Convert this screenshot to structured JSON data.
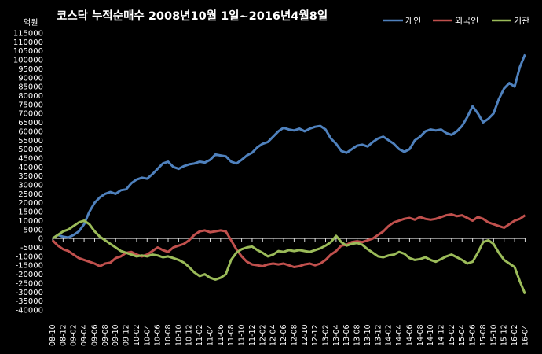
{
  "chart_data": {
    "type": "line",
    "title": "코스닥  누적순매수 2008년10월 1일~2016년4월8일",
    "unit_label": "억원",
    "ylim": [
      -40000,
      115000
    ],
    "y_ticks": [
      115000,
      110000,
      105000,
      100000,
      95000,
      90000,
      85000,
      80000,
      75000,
      70000,
      65000,
      60000,
      55000,
      50000,
      45000,
      40000,
      35000,
      30000,
      25000,
      20000,
      15000,
      10000,
      5000,
      0,
      -5000,
      -10000,
      -15000,
      -20000,
      -25000,
      -30000,
      -35000,
      -40000
    ],
    "x_start": "2008-10-01",
    "x_end": "2016-04-08",
    "x_ticks": [
      "08-10",
      "08-12",
      "09-02",
      "09-04",
      "09-06",
      "09-08",
      "09-10",
      "09-12",
      "10-02",
      "10-04",
      "10-06",
      "10-08",
      "10-10",
      "10-12",
      "11-02",
      "11-04",
      "11-06",
      "11-08",
      "11-10",
      "11-12",
      "12-02",
      "12-04",
      "12-06",
      "12-08",
      "12-10",
      "12-12",
      "13-02",
      "13-04",
      "13-06",
      "13-08",
      "13-10",
      "13-12",
      "14-02",
      "14-04",
      "14-06",
      "14-08",
      "14-10",
      "14-12",
      "15-02",
      "15-04",
      "15-06",
      "15-08",
      "15-10",
      "15-12",
      "16-02",
      "16-04"
    ],
    "legend_position": "top-right",
    "grid": false,
    "series": [
      {
        "name": "개인",
        "color": "#4f81bd",
        "points": [
          [
            "2008-10",
            0
          ],
          [
            "2008-11",
            2000
          ],
          [
            "2008-12",
            1000
          ],
          [
            "2009-01",
            500
          ],
          [
            "2009-02",
            2000
          ],
          [
            "2009-03",
            4000
          ],
          [
            "2009-04",
            8000
          ],
          [
            "2009-05",
            15000
          ],
          [
            "2009-06",
            20000
          ],
          [
            "2009-07",
            23000
          ],
          [
            "2009-08",
            25000
          ],
          [
            "2009-09",
            26000
          ],
          [
            "2009-10",
            25000
          ],
          [
            "2009-11",
            27000
          ],
          [
            "2009-12",
            27500
          ],
          [
            "2010-01",
            31000
          ],
          [
            "2010-02",
            33000
          ],
          [
            "2010-03",
            34000
          ],
          [
            "2010-04",
            33500
          ],
          [
            "2010-05",
            36000
          ],
          [
            "2010-06",
            39000
          ],
          [
            "2010-07",
            42000
          ],
          [
            "2010-08",
            43000
          ],
          [
            "2010-09",
            40000
          ],
          [
            "2010-10",
            39000
          ],
          [
            "2010-11",
            40500
          ],
          [
            "2010-12",
            41500
          ],
          [
            "2011-01",
            42000
          ],
          [
            "2011-02",
            43000
          ],
          [
            "2011-03",
            42500
          ],
          [
            "2011-04",
            44000
          ],
          [
            "2011-05",
            47000
          ],
          [
            "2011-06",
            46500
          ],
          [
            "2011-07",
            46000
          ],
          [
            "2011-08",
            43000
          ],
          [
            "2011-09",
            42000
          ],
          [
            "2011-10",
            44000
          ],
          [
            "2011-11",
            46500
          ],
          [
            "2011-12",
            48000
          ],
          [
            "2012-01",
            51000
          ],
          [
            "2012-02",
            53000
          ],
          [
            "2012-03",
            54000
          ],
          [
            "2012-04",
            57000
          ],
          [
            "2012-05",
            60000
          ],
          [
            "2012-06",
            62000
          ],
          [
            "2012-07",
            61000
          ],
          [
            "2012-08",
            60500
          ],
          [
            "2012-09",
            61500
          ],
          [
            "2012-10",
            60000
          ],
          [
            "2012-11",
            61500
          ],
          [
            "2012-12",
            62500
          ],
          [
            "2013-01",
            63000
          ],
          [
            "2013-02",
            61000
          ],
          [
            "2013-03",
            56000
          ],
          [
            "2013-04",
            53000
          ],
          [
            "2013-05",
            49000
          ],
          [
            "2013-06",
            48000
          ],
          [
            "2013-07",
            50000
          ],
          [
            "2013-08",
            52000
          ],
          [
            "2013-09",
            52500
          ],
          [
            "2013-10",
            51500
          ],
          [
            "2013-11",
            54000
          ],
          [
            "2013-12",
            56000
          ],
          [
            "2014-01",
            57000
          ],
          [
            "2014-02",
            55000
          ],
          [
            "2014-03",
            53000
          ],
          [
            "2014-04",
            50000
          ],
          [
            "2014-05",
            48500
          ],
          [
            "2014-06",
            50000
          ],
          [
            "2014-07",
            55000
          ],
          [
            "2014-08",
            57000
          ],
          [
            "2014-09",
            60000
          ],
          [
            "2014-10",
            61000
          ],
          [
            "2014-11",
            60500
          ],
          [
            "2014-12",
            61000
          ],
          [
            "2015-01",
            59000
          ],
          [
            "2015-02",
            58000
          ],
          [
            "2015-03",
            60000
          ],
          [
            "2015-04",
            63000
          ],
          [
            "2015-05",
            68000
          ],
          [
            "2015-06",
            74000
          ],
          [
            "2015-07",
            70000
          ],
          [
            "2015-08",
            65000
          ],
          [
            "2015-09",
            67000
          ],
          [
            "2015-10",
            70000
          ],
          [
            "2015-11",
            78000
          ],
          [
            "2015-12",
            84000
          ],
          [
            "2016-01",
            87000
          ],
          [
            "2016-02",
            85000
          ],
          [
            "2016-03",
            96000
          ],
          [
            "2016-04",
            103000
          ]
        ]
      },
      {
        "name": "외국인",
        "color": "#c0504d",
        "points": [
          [
            "2008-10",
            -1000
          ],
          [
            "2008-11",
            -4000
          ],
          [
            "2008-12",
            -6000
          ],
          [
            "2009-01",
            -7000
          ],
          [
            "2009-02",
            -9000
          ],
          [
            "2009-03",
            -11000
          ],
          [
            "2009-04",
            -12000
          ],
          [
            "2009-05",
            -13000
          ],
          [
            "2009-06",
            -14000
          ],
          [
            "2009-07",
            -15500
          ],
          [
            "2009-08",
            -14000
          ],
          [
            "2009-09",
            -13500
          ],
          [
            "2009-10",
            -11000
          ],
          [
            "2009-11",
            -10000
          ],
          [
            "2009-12",
            -8000
          ],
          [
            "2010-01",
            -7500
          ],
          [
            "2010-02",
            -9000
          ],
          [
            "2010-03",
            -10000
          ],
          [
            "2010-04",
            -9000
          ],
          [
            "2010-05",
            -7000
          ],
          [
            "2010-06",
            -5000
          ],
          [
            "2010-07",
            -6500
          ],
          [
            "2010-08",
            -7500
          ],
          [
            "2010-09",
            -5000
          ],
          [
            "2010-10",
            -4000
          ],
          [
            "2010-11",
            -3000
          ],
          [
            "2010-12",
            -1000
          ],
          [
            "2011-01",
            2000
          ],
          [
            "2011-02",
            4000
          ],
          [
            "2011-03",
            4500
          ],
          [
            "2011-04",
            3500
          ],
          [
            "2011-05",
            4000
          ],
          [
            "2011-06",
            4500
          ],
          [
            "2011-07",
            4000
          ],
          [
            "2011-08",
            -1000
          ],
          [
            "2011-09",
            -6000
          ],
          [
            "2011-10",
            -10000
          ],
          [
            "2011-11",
            -13000
          ],
          [
            "2011-12",
            -14500
          ],
          [
            "2012-01",
            -15000
          ],
          [
            "2012-02",
            -15500
          ],
          [
            "2012-03",
            -14500
          ],
          [
            "2012-04",
            -14000
          ],
          [
            "2012-05",
            -14500
          ],
          [
            "2012-06",
            -14000
          ],
          [
            "2012-07",
            -15000
          ],
          [
            "2012-08",
            -16000
          ],
          [
            "2012-09",
            -15500
          ],
          [
            "2012-10",
            -14500
          ],
          [
            "2012-11",
            -14000
          ],
          [
            "2012-12",
            -15000
          ],
          [
            "2013-01",
            -14000
          ],
          [
            "2013-02",
            -12000
          ],
          [
            "2013-03",
            -9000
          ],
          [
            "2013-04",
            -7000
          ],
          [
            "2013-05",
            -4000
          ],
          [
            "2013-06",
            -3500
          ],
          [
            "2013-07",
            -2000
          ],
          [
            "2013-08",
            -1500
          ],
          [
            "2013-09",
            -2000
          ],
          [
            "2013-10",
            -1000
          ],
          [
            "2013-11",
            0
          ],
          [
            "2013-12",
            2000
          ],
          [
            "2014-01",
            4000
          ],
          [
            "2014-02",
            7000
          ],
          [
            "2014-03",
            9000
          ],
          [
            "2014-04",
            10000
          ],
          [
            "2014-05",
            11000
          ],
          [
            "2014-06",
            11500
          ],
          [
            "2014-07",
            10500
          ],
          [
            "2014-08",
            12000
          ],
          [
            "2014-09",
            11000
          ],
          [
            "2014-10",
            10500
          ],
          [
            "2014-11",
            11000
          ],
          [
            "2014-12",
            12000
          ],
          [
            "2015-01",
            13000
          ],
          [
            "2015-02",
            13500
          ],
          [
            "2015-03",
            12500
          ],
          [
            "2015-04",
            13000
          ],
          [
            "2015-05",
            11500
          ],
          [
            "2015-06",
            10000
          ],
          [
            "2015-07",
            12000
          ],
          [
            "2015-08",
            11000
          ],
          [
            "2015-09",
            9000
          ],
          [
            "2015-10",
            8000
          ],
          [
            "2015-11",
            7000
          ],
          [
            "2015-12",
            6000
          ],
          [
            "2016-01",
            8000
          ],
          [
            "2016-02",
            10000
          ],
          [
            "2016-03",
            11000
          ],
          [
            "2016-04",
            13000
          ]
        ]
      },
      {
        "name": "기관",
        "color": "#9bbb59",
        "points": [
          [
            "2008-10",
            0
          ],
          [
            "2008-11",
            2000
          ],
          [
            "2008-12",
            4000
          ],
          [
            "2009-01",
            5000
          ],
          [
            "2009-02",
            7000
          ],
          [
            "2009-03",
            9000
          ],
          [
            "2009-04",
            10000
          ],
          [
            "2009-05",
            8000
          ],
          [
            "2009-06",
            4000
          ],
          [
            "2009-07",
            1000
          ],
          [
            "2009-08",
            -1000
          ],
          [
            "2009-09",
            -3000
          ],
          [
            "2009-10",
            -5000
          ],
          [
            "2009-11",
            -7000
          ],
          [
            "2009-12",
            -8000
          ],
          [
            "2010-01",
            -9000
          ],
          [
            "2010-02",
            -10000
          ],
          [
            "2010-03",
            -9500
          ],
          [
            "2010-04",
            -10000
          ],
          [
            "2010-05",
            -9000
          ],
          [
            "2010-06",
            -9500
          ],
          [
            "2010-07",
            -10500
          ],
          [
            "2010-08",
            -10000
          ],
          [
            "2010-09",
            -11000
          ],
          [
            "2010-10",
            -12000
          ],
          [
            "2010-11",
            -13500
          ],
          [
            "2010-12",
            -16000
          ],
          [
            "2011-01",
            -19000
          ],
          [
            "2011-02",
            -21000
          ],
          [
            "2011-03",
            -20000
          ],
          [
            "2011-04",
            -22000
          ],
          [
            "2011-05",
            -23000
          ],
          [
            "2011-06",
            -22000
          ],
          [
            "2011-07",
            -20000
          ],
          [
            "2011-08",
            -12000
          ],
          [
            "2011-09",
            -8000
          ],
          [
            "2011-10",
            -6000
          ],
          [
            "2011-11",
            -5000
          ],
          [
            "2011-12",
            -4500
          ],
          [
            "2012-01",
            -6500
          ],
          [
            "2012-02",
            -8000
          ],
          [
            "2012-03",
            -10000
          ],
          [
            "2012-04",
            -9000
          ],
          [
            "2012-05",
            -7000
          ],
          [
            "2012-06",
            -7500
          ],
          [
            "2012-07",
            -6500
          ],
          [
            "2012-08",
            -7000
          ],
          [
            "2012-09",
            -6500
          ],
          [
            "2012-10",
            -7000
          ],
          [
            "2012-11",
            -7500
          ],
          [
            "2012-12",
            -6500
          ],
          [
            "2013-01",
            -5500
          ],
          [
            "2013-02",
            -4000
          ],
          [
            "2013-03",
            -2000
          ],
          [
            "2013-04",
            1500
          ],
          [
            "2013-05",
            -2000
          ],
          [
            "2013-06",
            -4000
          ],
          [
            "2013-07",
            -3000
          ],
          [
            "2013-08",
            -2500
          ],
          [
            "2013-09",
            -3500
          ],
          [
            "2013-10",
            -6000
          ],
          [
            "2013-11",
            -8000
          ],
          [
            "2013-12",
            -10000
          ],
          [
            "2014-01",
            -10500
          ],
          [
            "2014-02",
            -9500
          ],
          [
            "2014-03",
            -9000
          ],
          [
            "2014-04",
            -7500
          ],
          [
            "2014-05",
            -8500
          ],
          [
            "2014-06",
            -11000
          ],
          [
            "2014-07",
            -12000
          ],
          [
            "2014-08",
            -11500
          ],
          [
            "2014-09",
            -10500
          ],
          [
            "2014-10",
            -12000
          ],
          [
            "2014-11",
            -13000
          ],
          [
            "2014-12",
            -11500
          ],
          [
            "2015-01",
            -10000
          ],
          [
            "2015-02",
            -9000
          ],
          [
            "2015-03",
            -10500
          ],
          [
            "2015-04",
            -12000
          ],
          [
            "2015-05",
            -14000
          ],
          [
            "2015-06",
            -13000
          ],
          [
            "2015-07",
            -8000
          ],
          [
            "2015-08",
            -2000
          ],
          [
            "2015-09",
            -1000
          ],
          [
            "2015-10",
            -3000
          ],
          [
            "2015-11",
            -8000
          ],
          [
            "2015-12",
            -12000
          ],
          [
            "2016-01",
            -14000
          ],
          [
            "2016-02",
            -16000
          ],
          [
            "2016-03",
            -24000
          ],
          [
            "2016-04",
            -31000
          ]
        ]
      }
    ]
  }
}
